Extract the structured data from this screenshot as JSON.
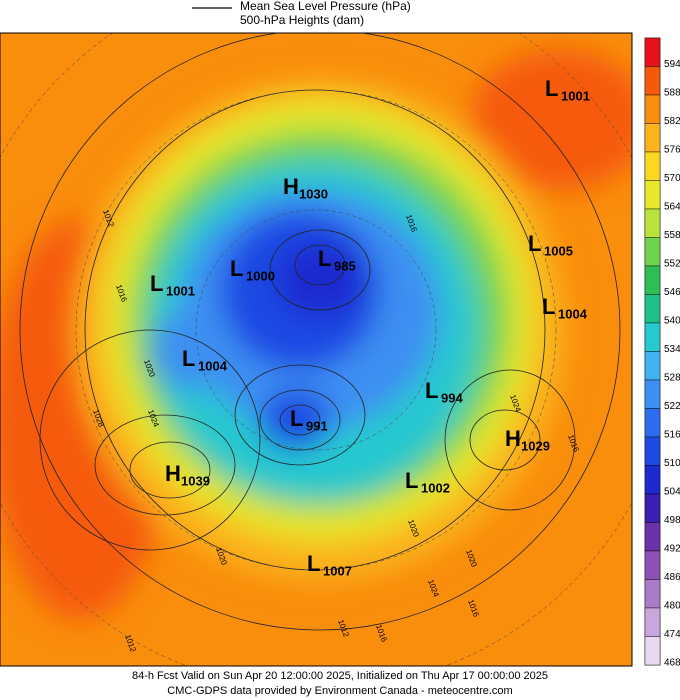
{
  "header": {
    "legend_line": "Mean Sea Level Pressure (hPa)",
    "subtitle": "500-hPa Heights (dam)"
  },
  "colorbar": [
    {
      "label": "594",
      "color": "#e8121a"
    },
    {
      "label": "588",
      "color": "#f55a0a"
    },
    {
      "label": "582",
      "color": "#f98d0c"
    },
    {
      "label": "576",
      "color": "#fbb41c"
    },
    {
      "label": "570",
      "color": "#fbd71f"
    },
    {
      "label": "564",
      "color": "#e6e829"
    },
    {
      "label": "558",
      "color": "#b9e33a"
    },
    {
      "label": "552",
      "color": "#6fd34e"
    },
    {
      "label": "546",
      "color": "#2dbf55"
    },
    {
      "label": "540",
      "color": "#1fbf8a"
    },
    {
      "label": "534",
      "color": "#28c8d0"
    },
    {
      "label": "528",
      "color": "#3fb2ef"
    },
    {
      "label": "522",
      "color": "#3d8ff2"
    },
    {
      "label": "516",
      "color": "#2f6df0"
    },
    {
      "label": "510",
      "color": "#1f49e3"
    },
    {
      "label": "504",
      "color": "#1d2ad0"
    },
    {
      "label": "498",
      "color": "#3a1fb2"
    },
    {
      "label": "492",
      "color": "#6a31a8"
    },
    {
      "label": "486",
      "color": "#8d52b5"
    },
    {
      "label": "480",
      "color": "#a97bc8"
    },
    {
      "label": "474",
      "color": "#c7a7dc"
    },
    {
      "label": "468",
      "color": "#e6d9f0"
    }
  ],
  "centers": [
    {
      "letter": "L",
      "value": "1001"
    },
    {
      "letter": "H",
      "value": "1030"
    },
    {
      "letter": "L",
      "value": "1005"
    },
    {
      "letter": "L",
      "value": "985"
    },
    {
      "letter": "L",
      "value": "1000"
    },
    {
      "letter": "L",
      "value": "1001"
    },
    {
      "letter": "L",
      "value": "1004"
    },
    {
      "letter": "L",
      "value": "1004"
    },
    {
      "letter": "L",
      "value": "994"
    },
    {
      "letter": "L",
      "value": "991"
    },
    {
      "letter": "H",
      "value": "1029"
    },
    {
      "letter": "H",
      "value": "1039"
    },
    {
      "letter": "L",
      "value": "1002"
    },
    {
      "letter": "L",
      "value": "1007"
    }
  ],
  "contour_labels": [
    "1012",
    "1016",
    "1020",
    "1028",
    "1024",
    "1016",
    "1024",
    "1020",
    "1016",
    "1020",
    "1020",
    "1024",
    "1016",
    "1012",
    "1016",
    "1012"
  ],
  "footer": {
    "line1": "84-h Fcst Valid on Sun Apr 20 12:00:00 2025, Initialized on Thu Apr 17 00:00:00 2025",
    "line2": "CMC-GDPS data provided by Environment Canada - meteocentre.com"
  }
}
